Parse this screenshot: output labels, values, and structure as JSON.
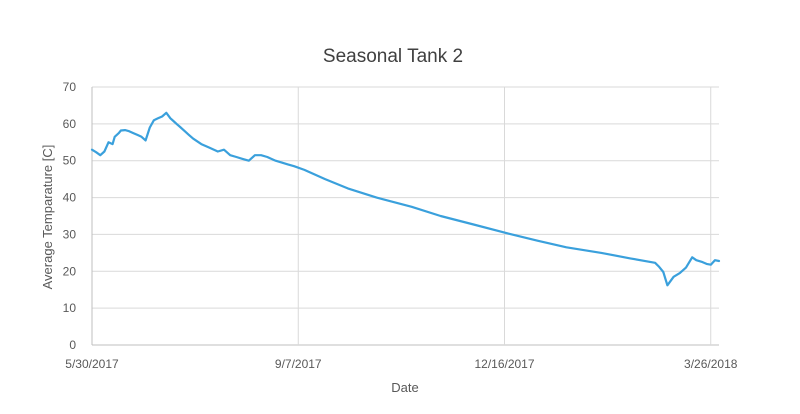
{
  "chart_data": {
    "type": "line",
    "title": "Seasonal Tank 2",
    "xlabel": "Date",
    "ylabel": "Average Temparature [C]",
    "ylim": [
      0,
      70
    ],
    "y_ticks": [
      "0",
      "10",
      "20",
      "30",
      "40",
      "50",
      "60",
      "70"
    ],
    "x_range": [
      "2017-05-30",
      "2018-03-30"
    ],
    "x_ticks": [
      {
        "date": "2017-05-30",
        "label": "5/30/2017"
      },
      {
        "date": "2017-09-07",
        "label": "9/7/2017"
      },
      {
        "date": "2017-12-16",
        "label": "12/16/2017"
      },
      {
        "date": "2018-03-26",
        "label": "3/26/2018"
      }
    ],
    "grid": true,
    "legend": "none",
    "colors": {
      "series": "#3aa0dc",
      "grid": "#d9d9d9"
    },
    "series": [
      {
        "x": [
          "2017-05-30",
          "2017-06-01",
          "2017-06-03",
          "2017-06-05",
          "2017-06-07",
          "2017-06-09",
          "2017-06-10",
          "2017-06-12",
          "2017-06-13",
          "2017-06-15",
          "2017-06-17",
          "2017-06-19",
          "2017-06-21",
          "2017-06-23",
          "2017-06-25",
          "2017-06-27",
          "2017-06-29",
          "2017-07-01",
          "2017-07-03",
          "2017-07-05",
          "2017-07-07",
          "2017-07-09",
          "2017-07-10",
          "2017-07-12",
          "2017-07-14",
          "2017-07-16",
          "2017-07-18",
          "2017-07-22",
          "2017-07-26",
          "2017-07-30",
          "2017-08-02",
          "2017-08-05",
          "2017-08-08",
          "2017-08-11",
          "2017-08-14",
          "2017-08-17",
          "2017-08-20",
          "2017-08-23",
          "2017-08-25",
          "2017-08-27",
          "2017-08-30",
          "2017-09-02",
          "2017-09-05",
          "2017-09-10",
          "2017-09-20",
          "2017-10-01",
          "2017-10-15",
          "2017-11-01",
          "2017-11-15",
          "2017-12-01",
          "2017-12-16",
          "2018-01-01",
          "2018-01-15",
          "2018-02-01",
          "2018-02-15",
          "2018-02-27",
          "2018-03-01",
          "2018-03-03",
          "2018-03-05",
          "2018-03-08",
          "2018-03-11",
          "2018-03-14",
          "2018-03-17",
          "2018-03-19",
          "2018-03-22",
          "2018-03-24",
          "2018-03-26",
          "2018-03-28",
          "2018-03-30"
        ],
        "values": [
          53,
          52.3,
          51.5,
          52.5,
          55,
          54.5,
          56.5,
          57.5,
          58.2,
          58.3,
          58,
          57.5,
          57,
          56.5,
          55.5,
          59,
          61,
          61.5,
          62,
          63,
          61.5,
          60.5,
          60,
          59,
          58,
          57,
          56,
          54.5,
          53.5,
          52.5,
          53,
          51.5,
          51,
          50.5,
          50,
          51.5,
          51.5,
          51,
          50.5,
          50,
          49.5,
          49,
          48.5,
          47.5,
          45,
          42.5,
          40,
          37.5,
          35,
          32.7,
          30.5,
          28.3,
          26.5,
          25,
          23.5,
          22.3,
          21.2,
          19.8,
          16.2,
          18.5,
          19.5,
          21,
          23.8,
          23,
          22.5,
          22,
          21.8,
          23,
          22.8
        ]
      }
    ]
  }
}
